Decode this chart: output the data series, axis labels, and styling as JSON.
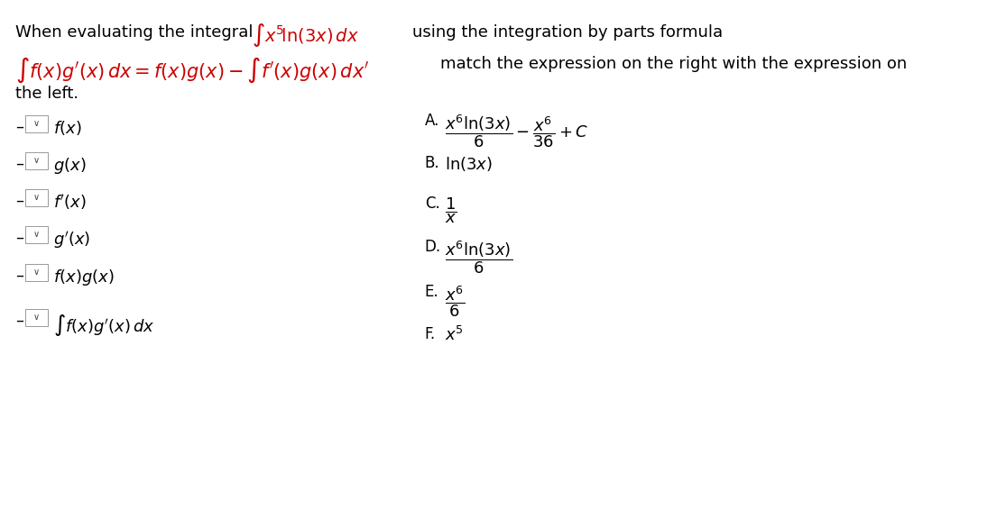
{
  "bg_color": "#ffffff",
  "text_color": "#000000",
  "red_color": "#cc0000",
  "title_line1_black1": "When evaluating the integral",
  "title_line1_black2": "using the integration by parts formula",
  "title_line2_black": "match the expression on the right with the expression on",
  "title_line3": "the left.",
  "left_items": [
    "$f(x)$",
    "$g(x)$",
    "$f^{\\prime}(x)$",
    "$g^{\\prime}(x)$",
    "$f(x)g(x)$",
    "$\\int f(x)g^{\\prime}(x)\\,dx$"
  ],
  "right_labels": [
    "A.",
    "B.",
    "C.",
    "D.",
    "E.",
    "F."
  ],
  "font_size_main": 13
}
